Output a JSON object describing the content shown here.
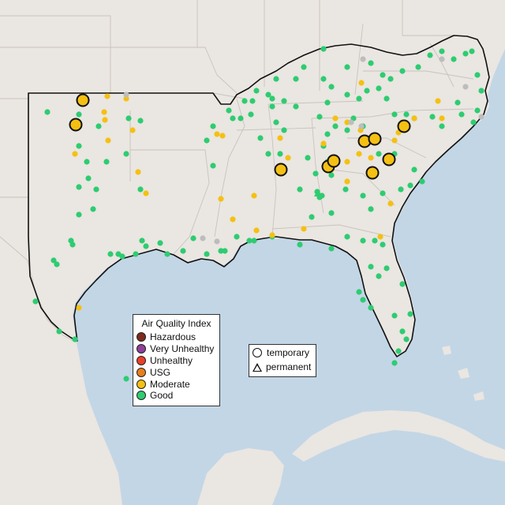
{
  "legend": {
    "title": "Air Quality Index",
    "categories": [
      {
        "label": "Hazardous",
        "color": "#7e2a1e"
      },
      {
        "label": "Very Unhealthy",
        "color": "#8f3f97"
      },
      {
        "label": "Unhealthy",
        "color": "#e8402a"
      },
      {
        "label": "USG",
        "color": "#e87f1c"
      },
      {
        "label": "Moderate",
        "color": "#f5c013"
      },
      {
        "label": "Good",
        "color": "#2ecc71"
      }
    ]
  },
  "shape_legend": {
    "temporary": "temporary",
    "permanent": "permanent"
  },
  "colors": {
    "water": "#c3d6e6",
    "land": "#eae6e1",
    "border": "#111111",
    "no_data": "#bdbdbd"
  }
}
